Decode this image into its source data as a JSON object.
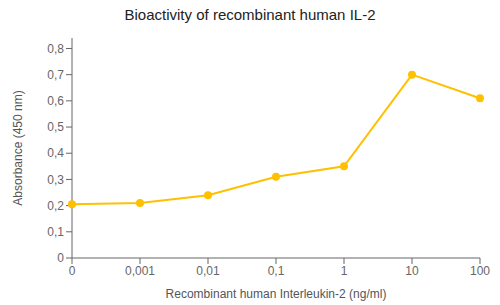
{
  "chart_data": {
    "type": "line",
    "title": "Bioactivity of recombinant human IL-2",
    "xlabel": "Recombinant human Interleukin-2 (ng/ml)",
    "ylabel": "Absorbance (450 nm)",
    "categories": [
      "0",
      "0,001",
      "0,01",
      "0,1",
      "1",
      "10",
      "100"
    ],
    "values": [
      0.205,
      0.21,
      0.24,
      0.31,
      0.35,
      0.7,
      0.61
    ],
    "color": "#FFC000",
    "marker": "circle",
    "ylim": [
      0,
      0.84
    ],
    "yticks": [
      0,
      {
        "value": 0.1,
        "label": "0,1"
      },
      {
        "value": 0.2,
        "label": "0,2"
      },
      {
        "value": 0.3,
        "label": "0,3"
      },
      {
        "value": 0.4,
        "label": "0,4"
      },
      {
        "value": 0.5,
        "label": "0,5"
      },
      {
        "value": 0.6,
        "label": "0,6"
      },
      {
        "value": 0.7,
        "label": "0,7"
      },
      {
        "value": 0.8,
        "label": "0,8"
      }
    ],
    "grid": false
  }
}
